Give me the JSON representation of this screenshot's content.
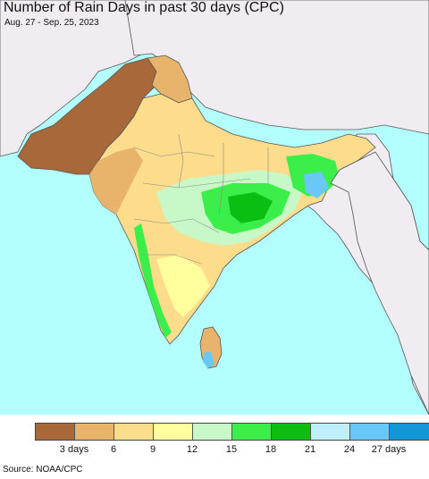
{
  "title": "Number of Rain Days in past 30 days (CPC)",
  "date_range": "Aug. 27 - Sep. 25, 2023",
  "source": "Source: NOAA/CPC",
  "colors": {
    "ocean": "#b3ffff",
    "land_outside": "#f0ecf2",
    "border": "#555555"
  },
  "legend": {
    "colors": [
      "#a9683a",
      "#e8b46b",
      "#fddc8c",
      "#ffff9e",
      "#c8f8c8",
      "#3cee4a",
      "#0cbe12",
      "#bfeefc",
      "#6ac8f8",
      "#1298d8"
    ],
    "labels": [
      "3 days",
      "6",
      "9",
      "12",
      "15",
      "18",
      "21",
      "24",
      "27 days"
    ]
  }
}
